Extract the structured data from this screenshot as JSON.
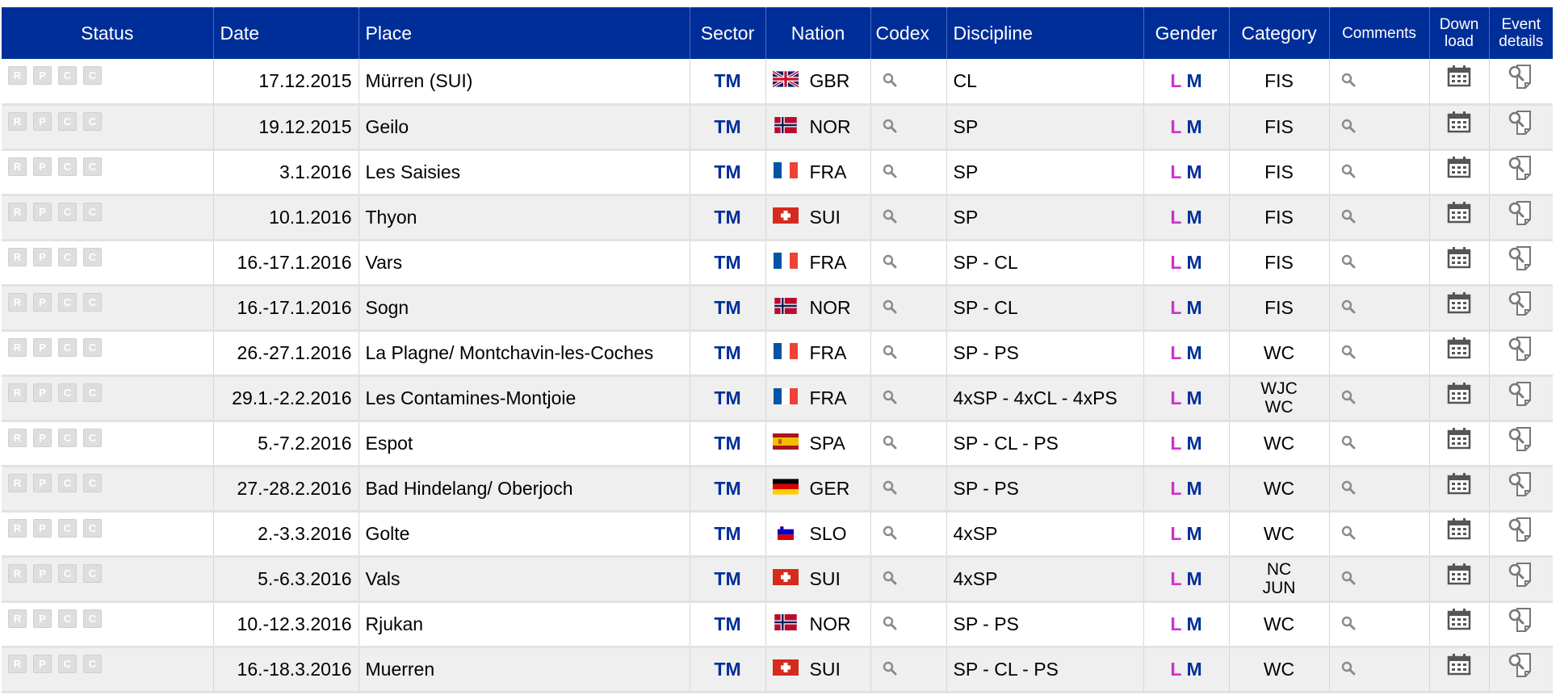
{
  "headers": {
    "status": "Status",
    "date": "Date",
    "place": "Place",
    "sector": "Sector",
    "nation": "Nation",
    "codex": "Codex",
    "discipline": "Discipline",
    "gender": "Gender",
    "category": "Category",
    "comments": "Comments",
    "download_1": "Down",
    "download_2": "load",
    "event_details_1": "Event",
    "event_details_2": "details"
  },
  "status_letters": [
    "R",
    "P",
    "C",
    "C"
  ],
  "gender_labels": {
    "ladies": "L",
    "men": "M"
  },
  "colors": {
    "header_bg": "#002e99",
    "sector_text": "#002e99",
    "ladies": "#cc33cc",
    "men": "#002e99",
    "row_alt": "#efefef"
  },
  "icons": {
    "codex": "magnifier-icon",
    "comments": "magnifier-icon",
    "download": "calendar-icon",
    "event_details": "event-details-icon"
  },
  "rows": [
    {
      "date": "17.12.2015",
      "place": "Mürren (SUI)",
      "sector": "TM",
      "nation": "GBR",
      "flag": "gbr",
      "discipline": "CL",
      "category": [
        "FIS"
      ]
    },
    {
      "date": "19.12.2015",
      "place": "Geilo",
      "sector": "TM",
      "nation": "NOR",
      "flag": "nor",
      "discipline": "SP",
      "category": [
        "FIS"
      ]
    },
    {
      "date": "3.1.2016",
      "place": "Les Saisies",
      "sector": "TM",
      "nation": "FRA",
      "flag": "fra",
      "discipline": "SP",
      "category": [
        "FIS"
      ]
    },
    {
      "date": "10.1.2016",
      "place": "Thyon",
      "sector": "TM",
      "nation": "SUI",
      "flag": "sui",
      "discipline": "SP",
      "category": [
        "FIS"
      ]
    },
    {
      "date": "16.-17.1.2016",
      "place": "Vars",
      "sector": "TM",
      "nation": "FRA",
      "flag": "fra",
      "discipline": "SP - CL",
      "category": [
        "FIS"
      ]
    },
    {
      "date": "16.-17.1.2016",
      "place": "Sogn",
      "sector": "TM",
      "nation": "NOR",
      "flag": "nor",
      "discipline": "SP - CL",
      "category": [
        "FIS"
      ]
    },
    {
      "date": "26.-27.1.2016",
      "place": "La Plagne/ Montchavin-les-Coches",
      "sector": "TM",
      "nation": "FRA",
      "flag": "fra",
      "discipline": "SP - PS",
      "category": [
        "WC"
      ]
    },
    {
      "date": "29.1.-2.2.2016",
      "place": "Les Contamines-Montjoie",
      "sector": "TM",
      "nation": "FRA",
      "flag": "fra",
      "discipline": "4xSP - 4xCL - 4xPS",
      "category": [
        "WJC",
        "WC"
      ]
    },
    {
      "date": "5.-7.2.2016",
      "place": "Espot",
      "sector": "TM",
      "nation": "SPA",
      "flag": "spa",
      "discipline": "SP - CL - PS",
      "category": [
        "WC"
      ]
    },
    {
      "date": "27.-28.2.2016",
      "place": "Bad Hindelang/ Oberjoch",
      "sector": "TM",
      "nation": "GER",
      "flag": "ger",
      "discipline": "SP - PS",
      "category": [
        "WC"
      ]
    },
    {
      "date": "2.-3.3.2016",
      "place": "Golte",
      "sector": "TM",
      "nation": "SLO",
      "flag": "slo",
      "discipline": "4xSP",
      "category": [
        "WC"
      ]
    },
    {
      "date": "5.-6.3.2016",
      "place": "Vals",
      "sector": "TM",
      "nation": "SUI",
      "flag": "sui",
      "discipline": "4xSP",
      "category": [
        "NC",
        "JUN"
      ]
    },
    {
      "date": "10.-12.3.2016",
      "place": "Rjukan",
      "sector": "TM",
      "nation": "NOR",
      "flag": "nor",
      "discipline": "SP - PS",
      "category": [
        "WC"
      ]
    },
    {
      "date": "16.-18.3.2016",
      "place": "Muerren",
      "sector": "TM",
      "nation": "SUI",
      "flag": "sui",
      "discipline": "SP - CL - PS",
      "category": [
        "WC"
      ]
    }
  ]
}
